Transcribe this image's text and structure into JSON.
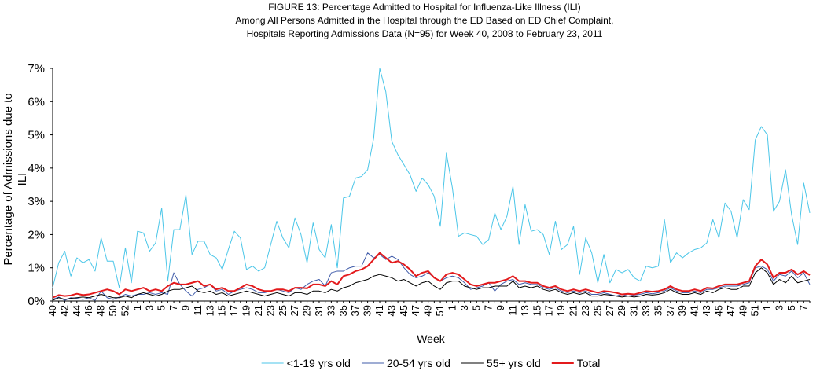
{
  "chart_data": {
    "type": "line",
    "title": [
      "FIGURE 13: Percentage Admitted to Hospital for Influenza-Like Illness (ILI)",
      "Among All Persons Admitted in the Hospital through the ED Based on ED Chief Complaint,",
      "Hospitals Reporting Admissions Data (N=95) for Week 40, 2008 to February 23, 2011"
    ],
    "x_label": "Week",
    "y_label": "Percentage of Admissions due to ILI",
    "categories": [
      "40",
      null,
      "42",
      null,
      "44",
      null,
      "46",
      null,
      "48",
      null,
      "50",
      null,
      "52",
      null,
      "1",
      null,
      "3",
      null,
      "5",
      null,
      "7",
      null,
      "9",
      null,
      "11",
      null,
      "13",
      null,
      "15",
      null,
      "17",
      null,
      "19",
      null,
      "21",
      null,
      "23",
      null,
      "25",
      null,
      "27",
      null,
      "29",
      null,
      "31",
      null,
      "33",
      null,
      "35",
      null,
      "37",
      null,
      "39",
      null,
      "41",
      null,
      "43",
      null,
      "45",
      null,
      "47",
      null,
      "49",
      null,
      "51",
      null,
      "1",
      null,
      "3",
      null,
      "5",
      null,
      "7",
      null,
      "9",
      null,
      "11",
      null,
      "13",
      null,
      "15",
      null,
      "17",
      null,
      "19",
      null,
      "21",
      null,
      "23",
      null,
      "25",
      null,
      "27",
      null,
      "29",
      null,
      "31",
      null,
      "33",
      null,
      "35",
      null,
      "37",
      null,
      "39",
      null,
      "41",
      null,
      "43",
      null,
      "45",
      null,
      "47",
      null,
      "49",
      null,
      "51",
      null,
      "1",
      null,
      "3",
      null,
      "5",
      null,
      "7",
      null
    ],
    "ylim": [
      0,
      7
    ],
    "yticks": [
      {
        "value": 0,
        "label": "0%"
      },
      {
        "value": 1,
        "label": "1%"
      },
      {
        "value": 2,
        "label": "2%"
      },
      {
        "value": 3,
        "label": "3%"
      },
      {
        "value": 4,
        "label": "4%"
      },
      {
        "value": 5,
        "label": "5%"
      },
      {
        "value": 6,
        "label": "6%"
      },
      {
        "value": 7,
        "label": "7%"
      }
    ],
    "series": [
      {
        "name": "<1-19 yrs old",
        "color": "#4BC6E8",
        "values": [
          0.4,
          1.15,
          1.5,
          0.75,
          1.3,
          1.15,
          1.25,
          0.9,
          1.9,
          1.2,
          1.2,
          0.4,
          1.6,
          0.55,
          2.1,
          2.05,
          1.5,
          1.75,
          2.8,
          0.6,
          2.15,
          2.15,
          3.2,
          1.4,
          1.8,
          1.8,
          1.4,
          1.3,
          0.95,
          1.55,
          2.1,
          1.9,
          0.95,
          1.05,
          0.9,
          1.0,
          1.7,
          2.4,
          1.9,
          1.6,
          2.5,
          2.0,
          1.15,
          2.35,
          1.55,
          1.3,
          2.3,
          1.0,
          3.1,
          3.15,
          3.7,
          3.75,
          3.95,
          4.9,
          7.0,
          6.3,
          4.8,
          4.4,
          4.1,
          3.8,
          3.3,
          3.7,
          3.5,
          3.15,
          2.25,
          4.45,
          3.4,
          1.95,
          2.05,
          2.0,
          1.95,
          1.7,
          1.85,
          2.65,
          2.15,
          2.55,
          3.45,
          1.7,
          2.9,
          2.1,
          2.15,
          2.0,
          1.4,
          2.4,
          1.55,
          1.7,
          2.25,
          0.8,
          1.9,
          1.45,
          0.55,
          1.4,
          0.55,
          0.95,
          0.85,
          0.95,
          0.7,
          0.6,
          1.05,
          1.0,
          1.05,
          2.45,
          1.15,
          1.45,
          1.3,
          1.45,
          1.55,
          1.6,
          1.75,
          2.45,
          1.9,
          2.95,
          2.7,
          1.9,
          3.05,
          2.75,
          4.85,
          5.25,
          5.0,
          2.7,
          3.0,
          3.95,
          2.6,
          1.7,
          3.55,
          2.65
        ]
      },
      {
        "name": "20-54 yrs old",
        "color": "#3F5BA9",
        "values": [
          0.05,
          0.12,
          0.02,
          0.1,
          0.08,
          0.05,
          0.1,
          0.02,
          0.3,
          0.1,
          0.05,
          0.12,
          0.2,
          0.15,
          0.2,
          0.2,
          0.25,
          0.2,
          0.25,
          0.2,
          0.85,
          0.5,
          0.3,
          0.15,
          0.35,
          0.4,
          0.5,
          0.3,
          0.35,
          0.2,
          0.3,
          0.35,
          0.4,
          0.35,
          0.25,
          0.25,
          0.3,
          0.35,
          0.3,
          0.25,
          0.4,
          0.35,
          0.5,
          0.6,
          0.65,
          0.45,
          0.85,
          0.9,
          0.9,
          1.0,
          1.05,
          1.05,
          1.45,
          1.3,
          1.4,
          1.25,
          1.35,
          1.25,
          1.0,
          0.8,
          0.7,
          0.75,
          0.85,
          0.7,
          0.6,
          0.7,
          0.75,
          0.7,
          0.55,
          0.35,
          0.4,
          0.45,
          0.55,
          0.3,
          0.5,
          0.6,
          0.65,
          0.5,
          0.55,
          0.5,
          0.5,
          0.4,
          0.35,
          0.4,
          0.3,
          0.25,
          0.3,
          0.25,
          0.3,
          0.2,
          0.2,
          0.25,
          0.2,
          0.15,
          0.2,
          0.15,
          0.18,
          0.2,
          0.25,
          0.22,
          0.25,
          0.3,
          0.4,
          0.3,
          0.25,
          0.25,
          0.3,
          0.25,
          0.35,
          0.35,
          0.4,
          0.45,
          0.45,
          0.45,
          0.5,
          0.55,
          1.0,
          1.05,
          0.95,
          0.6,
          0.8,
          0.75,
          0.9,
          0.7,
          0.85,
          0.5
        ]
      },
      {
        "name": "55+ yrs old",
        "color": "#000000",
        "values": [
          0.02,
          0.1,
          0.05,
          0.08,
          0.1,
          0.12,
          0.1,
          0.15,
          0.2,
          0.15,
          0.1,
          0.1,
          0.15,
          0.1,
          0.2,
          0.25,
          0.2,
          0.15,
          0.2,
          0.3,
          0.35,
          0.35,
          0.4,
          0.45,
          0.3,
          0.25,
          0.3,
          0.2,
          0.25,
          0.15,
          0.2,
          0.25,
          0.3,
          0.25,
          0.2,
          0.15,
          0.2,
          0.25,
          0.2,
          0.15,
          0.25,
          0.25,
          0.2,
          0.3,
          0.3,
          0.25,
          0.35,
          0.3,
          0.4,
          0.45,
          0.55,
          0.6,
          0.65,
          0.75,
          0.8,
          0.75,
          0.7,
          0.6,
          0.65,
          0.55,
          0.45,
          0.55,
          0.6,
          0.45,
          0.35,
          0.55,
          0.6,
          0.6,
          0.45,
          0.4,
          0.35,
          0.4,
          0.4,
          0.45,
          0.45,
          0.45,
          0.6,
          0.4,
          0.45,
          0.4,
          0.45,
          0.35,
          0.3,
          0.35,
          0.25,
          0.2,
          0.25,
          0.2,
          0.25,
          0.15,
          0.15,
          0.2,
          0.18,
          0.15,
          0.12,
          0.15,
          0.12,
          0.15,
          0.2,
          0.18,
          0.2,
          0.25,
          0.35,
          0.25,
          0.2,
          0.2,
          0.25,
          0.2,
          0.3,
          0.25,
          0.35,
          0.4,
          0.35,
          0.35,
          0.45,
          0.45,
          0.85,
          1.0,
          0.85,
          0.5,
          0.65,
          0.55,
          0.75,
          0.55,
          0.6,
          0.65
        ]
      },
      {
        "name": "Total",
        "color": "#E31A1C",
        "width": 2,
        "values": [
          0.1,
          0.18,
          0.15,
          0.17,
          0.22,
          0.18,
          0.2,
          0.25,
          0.3,
          0.35,
          0.3,
          0.2,
          0.35,
          0.3,
          0.35,
          0.4,
          0.3,
          0.35,
          0.3,
          0.45,
          0.55,
          0.5,
          0.5,
          0.55,
          0.6,
          0.45,
          0.5,
          0.35,
          0.4,
          0.3,
          0.3,
          0.4,
          0.5,
          0.45,
          0.35,
          0.3,
          0.3,
          0.35,
          0.35,
          0.3,
          0.4,
          0.4,
          0.38,
          0.5,
          0.5,
          0.45,
          0.6,
          0.5,
          0.75,
          0.8,
          0.9,
          0.95,
          1.05,
          1.25,
          1.45,
          1.3,
          1.15,
          1.2,
          1.1,
          0.95,
          0.75,
          0.85,
          0.9,
          0.7,
          0.6,
          0.8,
          0.85,
          0.8,
          0.65,
          0.5,
          0.45,
          0.5,
          0.55,
          0.55,
          0.6,
          0.65,
          0.75,
          0.6,
          0.6,
          0.55,
          0.55,
          0.45,
          0.4,
          0.45,
          0.35,
          0.3,
          0.35,
          0.3,
          0.35,
          0.3,
          0.25,
          0.3,
          0.28,
          0.25,
          0.2,
          0.22,
          0.2,
          0.25,
          0.3,
          0.28,
          0.3,
          0.35,
          0.45,
          0.35,
          0.3,
          0.3,
          0.35,
          0.3,
          0.4,
          0.38,
          0.45,
          0.5,
          0.5,
          0.5,
          0.55,
          0.6,
          1.05,
          1.25,
          1.1,
          0.7,
          0.85,
          0.85,
          0.95,
          0.8,
          0.9,
          0.78
        ]
      }
    ]
  }
}
